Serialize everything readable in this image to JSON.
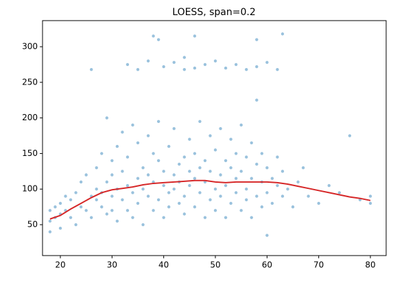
{
  "chart_data": {
    "type": "scatter",
    "title": "LOESS, span=0.2",
    "xlim": [
      16.55,
      83.05
    ],
    "ylim": [
      6.6,
      336.7
    ],
    "xticks": [
      20,
      30,
      40,
      50,
      60,
      70,
      80
    ],
    "yticks": [
      50,
      100,
      150,
      200,
      250,
      300
    ],
    "grid": false,
    "series": [
      {
        "type": "scatter",
        "color": "#1f77b4",
        "x": [
          18,
          18,
          18,
          19,
          19,
          20,
          20,
          20,
          21,
          21,
          22,
          22,
          23,
          23,
          24,
          24,
          25,
          25,
          26,
          26,
          27,
          27,
          27,
          28,
          28,
          28,
          29,
          29,
          29,
          30,
          30,
          30,
          30,
          31,
          31,
          31,
          32,
          32,
          32,
          33,
          33,
          33,
          34,
          34,
          34,
          35,
          35,
          35,
          36,
          36,
          36,
          37,
          37,
          37,
          38,
          38,
          38,
          39,
          39,
          39,
          40,
          40,
          40,
          41,
          41,
          41,
          42,
          42,
          42,
          43,
          43,
          43,
          44,
          44,
          44,
          45,
          45,
          45,
          46,
          46,
          46,
          47,
          47,
          47,
          48,
          48,
          48,
          49,
          49,
          49,
          50,
          50,
          50,
          51,
          51,
          51,
          52,
          52,
          52,
          53,
          53,
          53,
          54,
          54,
          54,
          55,
          55,
          55,
          56,
          56,
          56,
          57,
          57,
          57,
          58,
          58,
          58,
          59,
          59,
          59,
          60,
          60,
          60,
          61,
          61,
          62,
          62,
          63,
          63,
          64,
          65,
          66,
          67,
          68,
          70,
          72,
          74,
          76,
          78,
          80,
          80,
          33,
          35,
          37,
          39,
          40,
          42,
          44,
          46,
          48,
          50,
          52,
          54,
          56,
          58,
          60,
          62,
          38,
          44,
          63,
          46,
          58,
          26
        ],
        "values": [
          55,
          70,
          40,
          75,
          60,
          65,
          80,
          45,
          70,
          90,
          60,
          85,
          95,
          50,
          110,
          75,
          70,
          120,
          90,
          60,
          130,
          85,
          100,
          75,
          150,
          95,
          110,
          65,
          200,
          90,
          140,
          70,
          120,
          100,
          160,
          55,
          85,
          125,
          180,
          105,
          70,
          145,
          95,
          190,
          60,
          115,
          80,
          165,
          130,
          100,
          50,
          90,
          175,
          120,
          110,
          70,
          150,
          85,
          140,
          195,
          105,
          125,
          60,
          95,
          160,
          75,
          120,
          100,
          185,
          80,
          135,
          110,
          145,
          90,
          65,
          105,
          170,
          125,
          115,
          75,
          150,
          95,
          130,
          195,
          110,
          60,
          140,
          125,
          85,
          175,
          100,
          155,
          70,
          120,
          90,
          185,
          105,
          140,
          60,
          80,
          130,
          170,
          115,
          95,
          150,
          125,
          70,
          190,
          100,
          145,
          85,
          115,
          60,
          165,
          90,
          135,
          225,
          110,
          75,
          150,
          95,
          130,
          35,
          115,
          80,
          105,
          145,
          90,
          125,
          100,
          75,
          110,
          130,
          90,
          80,
          105,
          95,
          175,
          85,
          90,
          80,
          275,
          268,
          280,
          310,
          272,
          278,
          268,
          315,
          275,
          280,
          270,
          275,
          268,
          272,
          278,
          268,
          315,
          285,
          318,
          270,
          310,
          268
        ]
      },
      {
        "type": "line",
        "color": "#d62728",
        "x": [
          18,
          20,
          22,
          24,
          26,
          28,
          30,
          32,
          34,
          36,
          38,
          40,
          42,
          44,
          46,
          48,
          50,
          52,
          54,
          56,
          58,
          60,
          62,
          64,
          66,
          68,
          70,
          72,
          74,
          76,
          78,
          80
        ],
        "values": [
          58,
          63,
          72,
          80,
          88,
          95,
          99,
          101,
          103,
          106,
          108,
          109,
          110,
          111,
          112,
          112,
          110,
          109,
          110,
          110,
          110,
          110,
          109,
          107,
          104,
          101,
          98,
          95,
          92,
          89,
          87,
          84
        ]
      }
    ]
  }
}
